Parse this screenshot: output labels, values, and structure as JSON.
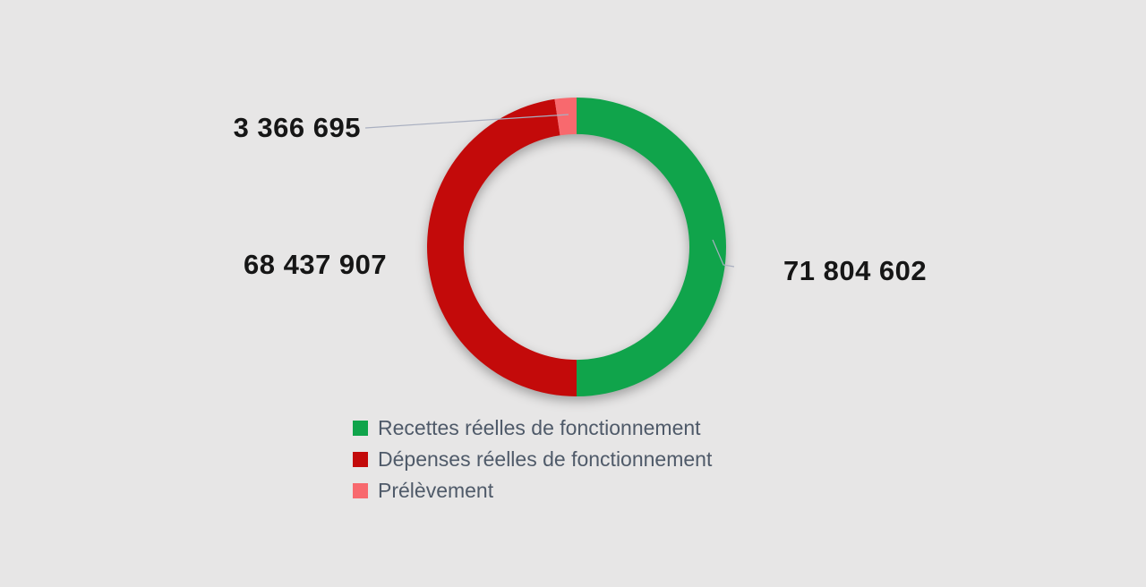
{
  "background_color": "#E7E6E6",
  "chart_data": {
    "type": "pie",
    "subtype": "donut",
    "title": "",
    "direction": "clockwise",
    "start_angle_deg": 0,
    "inner_radius_ratio": 0.755,
    "legend_position": "bottom",
    "grid": false,
    "label_text_color": "#161616",
    "legend_text_color": "#4F5A69",
    "leader_line_color": "#A9AFC0",
    "slices": [
      {
        "label": "Recettes réelles de fonctionnement",
        "value": 71804602,
        "formatted": "71 804 602",
        "color": "#10A44B"
      },
      {
        "label": "Dépenses réelles de fonctionnement",
        "value": 68437907,
        "formatted": "68 437 907",
        "color": "#C30A0A"
      },
      {
        "label": "Prélèvement",
        "value": 3366695,
        "formatted": "3 366 695",
        "color": "#F8696E"
      }
    ]
  }
}
